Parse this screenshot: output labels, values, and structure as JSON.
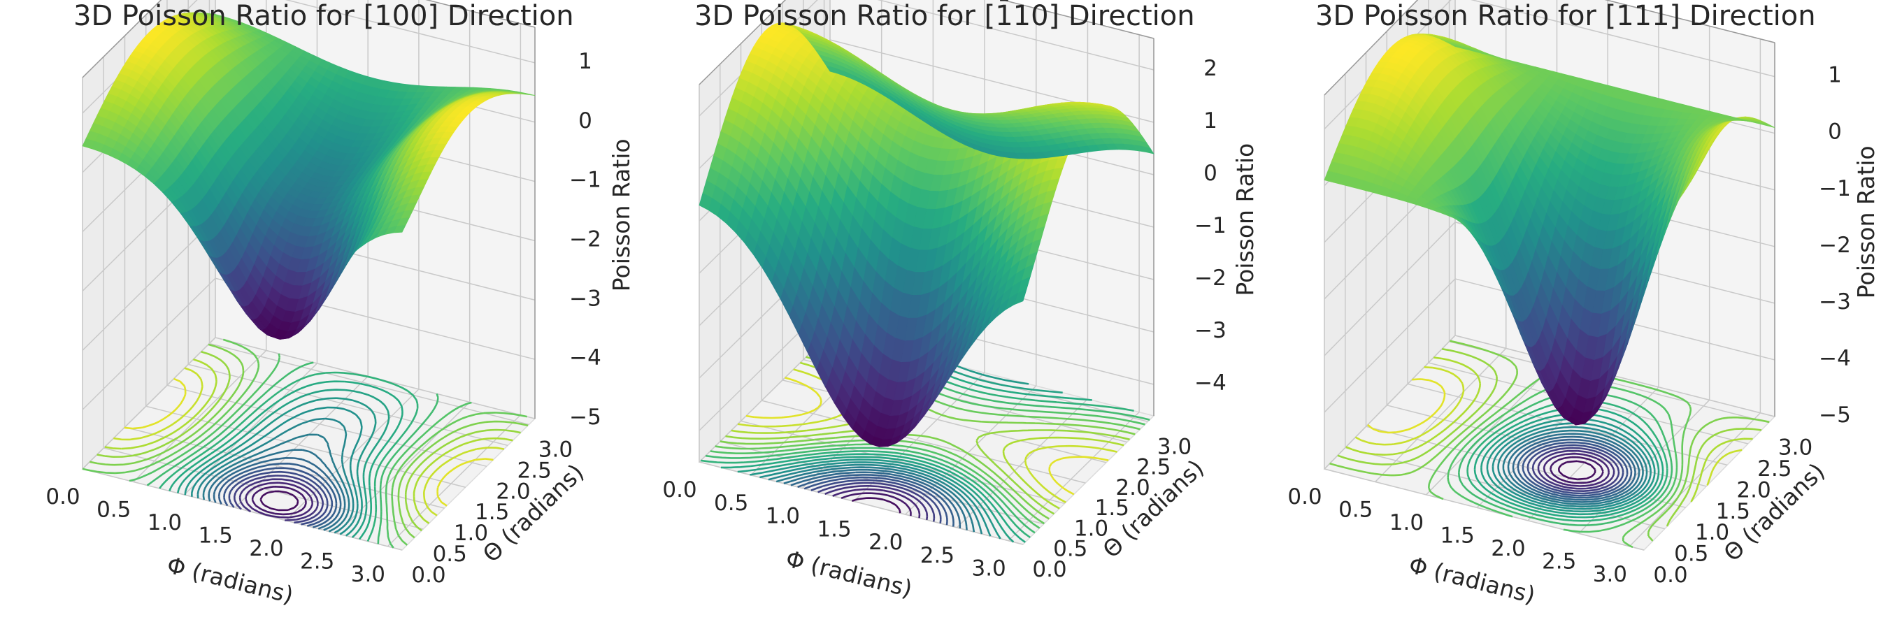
{
  "colors": {
    "low": "#440154",
    "mid": "#21918c",
    "high": "#fde725"
  },
  "chart_data": [
    {
      "type": "surface3d",
      "title": "3D Poisson Ratio for [100] Direction",
      "xlabel": "Φ (radians)",
      "ylabel": "Θ (radians)",
      "zlabel": "Poisson Ratio",
      "xticks": [
        "0.0",
        "0.5",
        "1.0",
        "1.5",
        "2.0",
        "2.5",
        "3.0"
      ],
      "yticks": [
        "0.0",
        "0.5",
        "1.0",
        "1.5",
        "2.0",
        "2.5",
        "3.0"
      ],
      "zticks": [
        "−5",
        "−4",
        "−3",
        "−2",
        "−1",
        "0",
        "1"
      ],
      "xlim": [
        0,
        3.14
      ],
      "ylim": [
        0,
        3.14
      ],
      "zlim": [
        -5,
        1.6
      ],
      "colormap": "viridis",
      "contour_projection": "floor",
      "grid": true,
      "z_range_estimated": [
        -4.6,
        1.2
      ]
    },
    {
      "type": "surface3d",
      "title": "3D Poisson Ratio for [1̄10] Direction",
      "xlabel": "Φ (radians)",
      "ylabel": "Θ (radians)",
      "zlabel": "Poisson Ratio",
      "xticks": [
        "0.0",
        "0.5",
        "1.0",
        "1.5",
        "2.0",
        "2.5",
        "3.0"
      ],
      "yticks": [
        "0.0",
        "0.5",
        "1.0",
        "1.5",
        "2.0",
        "2.5",
        "3.0"
      ],
      "zticks": [
        "−4",
        "−3",
        "−2",
        "−1",
        "0",
        "1",
        "2"
      ],
      "xlim": [
        0,
        3.14
      ],
      "ylim": [
        0,
        3.14
      ],
      "zlim": [
        -4.6,
        2.6
      ],
      "colormap": "viridis",
      "contour_projection": "floor",
      "grid": true,
      "z_range_estimated": [
        -4.4,
        2.4
      ]
    },
    {
      "type": "surface3d",
      "title": "3D Poisson Ratio for [111] Direction",
      "xlabel": "Φ (radians)",
      "ylabel": "Θ (radians)",
      "zlabel": "Poisson Ratio",
      "xticks": [
        "0.0",
        "0.5",
        "1.0",
        "1.5",
        "2.0",
        "2.5",
        "3.0"
      ],
      "yticks": [
        "0.0",
        "0.5",
        "1.0",
        "1.5",
        "2.0",
        "2.5",
        "3.0"
      ],
      "zticks": [
        "−5",
        "−4",
        "−3",
        "−2",
        "−1",
        "0",
        "1"
      ],
      "xlim": [
        0,
        3.14
      ],
      "ylim": [
        0,
        3.14
      ],
      "zlim": [
        -5,
        1.6
      ],
      "colormap": "viridis",
      "contour_projection": "floor",
      "grid": true,
      "z_range_estimated": [
        -4.8,
        1.4
      ]
    }
  ]
}
